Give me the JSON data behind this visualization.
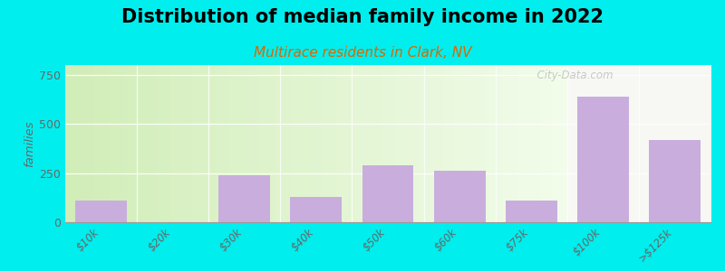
{
  "title": "Distribution of median family income in 2022",
  "subtitle": "Multirace residents in Clark, NV",
  "categories": [
    "$10k",
    "$20k",
    "$30k",
    "$40k",
    "$50k",
    "$60k",
    "$75k",
    "$100k",
    ">$125k"
  ],
  "values": [
    110,
    0,
    240,
    130,
    290,
    260,
    110,
    640,
    420
  ],
  "bar_color": "#c9aedd",
  "background_color": "#00eeee",
  "plot_bg_left_color": "#d8efc0",
  "plot_bg_right_color": "#f0f8e8",
  "plot_bg_far_right_color": "#f5f5f0",
  "ylabel": "families",
  "ylim": [
    0,
    800
  ],
  "yticks": [
    0,
    250,
    500,
    750
  ],
  "title_fontsize": 15,
  "subtitle_fontsize": 11,
  "subtitle_color": "#dd6600",
  "watermark": "  City-Data.com",
  "tick_label_color": "#666666",
  "n_green_bars": 7,
  "bar_width": 0.72
}
